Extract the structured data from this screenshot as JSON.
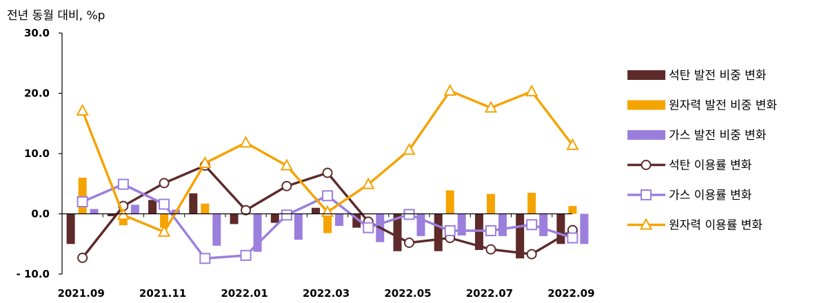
{
  "unit_label": "전년 동월 대비, %p",
  "colors": {
    "coal_bar": "#5e2a2a",
    "nuclear_bar": "#f5a300",
    "gas_bar": "#9b7fdc",
    "coal_line": "#5e2a2a",
    "gas_line": "#9b7fdc",
    "nuclear_line": "#f5a300"
  },
  "chart_data": {
    "type": "bar",
    "categories": [
      "2021.09",
      "2021.10",
      "2021.11",
      "2021.12",
      "2022.01",
      "2022.02",
      "2022.03",
      "2022.04",
      "2022.05",
      "2022.06",
      "2022.07",
      "2022.08",
      "2022.09"
    ],
    "x_tick_labels": [
      "2021.09",
      "",
      "2021.11",
      "",
      "2022.01",
      "",
      "2022.03",
      "",
      "2022.05",
      "",
      "2022.07",
      "",
      "2022.09"
    ],
    "ylim": [
      -10,
      30
    ],
    "y_ticks": [
      30,
      20,
      10,
      0,
      -10
    ],
    "y_tick_labels": [
      "30.0",
      "20.0",
      "10.0",
      "0.0",
      "- 10.0"
    ],
    "legend_position": "right",
    "series": [
      {
        "name": "석탄 발전 비중 변화",
        "kind": "bar",
        "values": [
          -5.0,
          -0.4,
          2.3,
          3.4,
          -1.7,
          -1.5,
          1.0,
          -2.3,
          -6.2,
          -6.2,
          -6.0,
          -7.4,
          -5.0
        ]
      },
      {
        "name": "원자력 발전 비중 변화",
        "kind": "bar",
        "values": [
          6.0,
          -1.9,
          -2.3,
          1.7,
          0.0,
          0.0,
          -3.2,
          -0.1,
          0.0,
          3.9,
          3.3,
          3.5,
          1.3
        ]
      },
      {
        "name": "가스 발전 비중 변화",
        "kind": "bar",
        "values": [
          0.8,
          1.5,
          0.7,
          -5.3,
          -6.3,
          -4.3,
          -2.0,
          -4.7,
          -3.7,
          -3.6,
          -3.7,
          -3.7,
          -5.0
        ]
      },
      {
        "name": "석탄 이용률 변화",
        "kind": "line",
        "marker": "circle",
        "values": [
          -7.3,
          1.3,
          5.1,
          8.0,
          0.6,
          4.6,
          6.8,
          -1.3,
          -4.8,
          -4.0,
          -5.9,
          -6.7,
          -2.7
        ]
      },
      {
        "name": "가스 이용률 변화",
        "kind": "line",
        "marker": "square",
        "values": [
          2.0,
          4.9,
          1.6,
          -7.4,
          -6.9,
          -0.2,
          3.0,
          -2.3,
          -0.1,
          -2.8,
          -2.8,
          -1.8,
          -4.0
        ]
      },
      {
        "name": "원자력 이용률 변화",
        "kind": "line",
        "marker": "triangle",
        "values": [
          17.1,
          -0.2,
          -3.0,
          8.4,
          11.8,
          8.0,
          0.3,
          4.9,
          10.6,
          20.4,
          17.6,
          20.3,
          11.4
        ]
      }
    ]
  }
}
